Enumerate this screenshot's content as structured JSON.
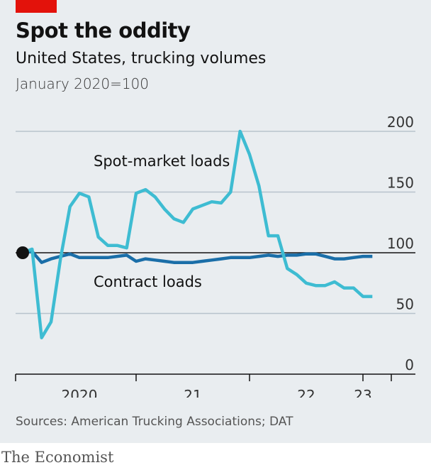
{
  "header": {
    "title": "Spot the oddity",
    "subtitle": "United States, trucking volumes",
    "unit": "January 2020=100"
  },
  "footer": {
    "source": "Sources: American Trucking Associations; DAT",
    "brand": "The Economist"
  },
  "colors": {
    "accent": "#e3120b",
    "spot": "#3ebcd2",
    "contract": "#1a6ea8",
    "baseline": "#121212",
    "grid": "#b8c3cc"
  },
  "chart_data": {
    "type": "line",
    "ylim": [
      0,
      200
    ],
    "yticks": [
      0,
      50,
      100,
      150,
      200
    ],
    "ytick_labels": [
      "0",
      "50",
      "100",
      "150",
      "200"
    ],
    "x_start": "2020-01",
    "x_end": "2023-02",
    "x_axis_range": [
      "2020-01",
      "2023-04"
    ],
    "xtick_labels": [
      "2020",
      "21",
      "22",
      "23"
    ],
    "xtick_label_positions": [
      "2020-07",
      "2021-07",
      "2022-07",
      "2023-01"
    ],
    "grid": true,
    "series": [
      {
        "name": "Spot-market loads",
        "color": "#3ebcd2",
        "x": [
          "2020-01",
          "2020-02",
          "2020-03",
          "2020-04",
          "2020-05",
          "2020-06",
          "2020-07",
          "2020-08",
          "2020-09",
          "2020-10",
          "2020-11",
          "2020-12",
          "2021-01",
          "2021-02",
          "2021-03",
          "2021-04",
          "2021-05",
          "2021-06",
          "2021-07",
          "2021-08",
          "2021-09",
          "2021-10",
          "2021-11",
          "2021-12",
          "2022-01",
          "2022-02",
          "2022-03",
          "2022-04",
          "2022-05",
          "2022-06",
          "2022-07",
          "2022-08",
          "2022-09",
          "2022-10",
          "2022-11",
          "2022-12",
          "2023-01",
          "2023-02"
        ],
        "values": [
          100,
          103,
          30,
          43,
          95,
          138,
          149,
          146,
          113,
          106,
          106,
          104,
          149,
          152,
          146,
          136,
          128,
          125,
          136,
          139,
          142,
          141,
          150,
          200,
          181,
          155,
          114,
          114,
          87,
          82,
          75,
          73,
          73,
          76,
          71,
          71,
          64,
          64
        ]
      },
      {
        "name": "Contract loads",
        "color": "#1a6ea8",
        "x": [
          "2020-01",
          "2020-02",
          "2020-03",
          "2020-04",
          "2020-05",
          "2020-06",
          "2020-07",
          "2020-08",
          "2020-09",
          "2020-10",
          "2020-11",
          "2020-12",
          "2021-01",
          "2021-02",
          "2021-03",
          "2021-04",
          "2021-05",
          "2021-06",
          "2021-07",
          "2021-08",
          "2021-09",
          "2021-10",
          "2021-11",
          "2021-12",
          "2022-01",
          "2022-02",
          "2022-03",
          "2022-04",
          "2022-05",
          "2022-06",
          "2022-07",
          "2022-08",
          "2022-09",
          "2022-10",
          "2022-11",
          "2022-12",
          "2023-01",
          "2023-02"
        ],
        "values": [
          100,
          101,
          92,
          95,
          97,
          99,
          96,
          96,
          96,
          96,
          97,
          98,
          93,
          95,
          94,
          93,
          92,
          92,
          92,
          93,
          94,
          95,
          96,
          96,
          96,
          97,
          98,
          97,
          98,
          98,
          99,
          99,
          97,
          95,
          95,
          96,
          97,
          97
        ]
      }
    ],
    "annotations": [
      {
        "text": "Spot-market loads",
        "series": 0
      },
      {
        "text": "Contract loads",
        "series": 1
      }
    ]
  }
}
